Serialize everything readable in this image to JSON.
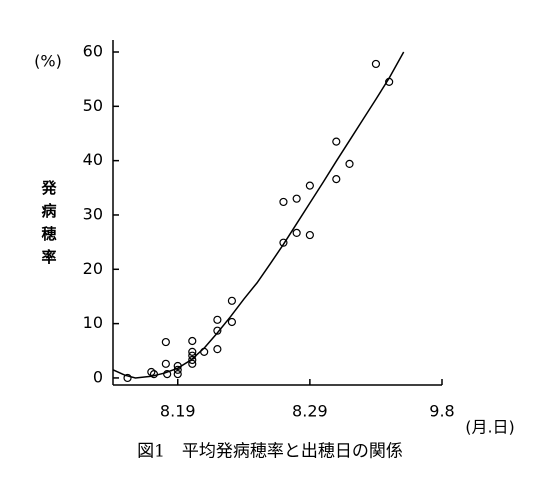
{
  "chart_data": {
    "type": "scatter",
    "y_unit": "(%)",
    "y_label": "発病穂率",
    "x_unit": "(月.日)",
    "caption": "図1　平均発病穂率と出穂日の関係",
    "xlim": [
      14.1,
      39
    ],
    "ylim": [
      -1.3,
      60
    ],
    "xticks": [
      {
        "value": 19,
        "label": "8.19"
      },
      {
        "value": 29,
        "label": "8.29"
      },
      {
        "value": 39,
        "label": "9.8"
      }
    ],
    "yticks": [
      0,
      10,
      20,
      30,
      40,
      50,
      60
    ],
    "series": [
      {
        "marker": "circle",
        "color": "#000000",
        "x": [
          15.2,
          17.0,
          17.2,
          18.1,
          18.1,
          18.2,
          19,
          19,
          19,
          20.1,
          20.1,
          20.1,
          20.1,
          20.1,
          21.0,
          22.0,
          22.0,
          22.0,
          23.1,
          23.1,
          27.0,
          27.0,
          28.0,
          28.0,
          29.0,
          29.0,
          31.0,
          31.0,
          32.0,
          34.0,
          35.0
        ],
        "values": [
          0,
          1.1,
          0.7,
          6.6,
          2.6,
          0.7,
          2.2,
          1.5,
          0.7,
          6.8,
          4.8,
          4.1,
          3.3,
          2.6,
          4.8,
          10.7,
          8.7,
          5.3,
          14.2,
          10.3,
          32.4,
          24.9,
          33.0,
          26.7,
          35.4,
          26.3,
          43.5,
          36.6,
          39.4,
          57.8,
          54.5
        ]
      },
      {
        "marker": "line",
        "color": "#000000",
        "x": [
          14.1,
          15,
          15.8,
          17,
          18,
          19,
          20,
          21,
          22,
          23,
          24,
          25,
          26,
          27,
          28,
          29,
          30,
          31,
          32,
          33,
          34,
          35,
          36.1
        ],
        "values": [
          1.5,
          0.5,
          0,
          0.3,
          0.9,
          1.8,
          3.3,
          5.5,
          8.3,
          11.3,
          14.5,
          17.5,
          21,
          24.6,
          28.4,
          32.2,
          36,
          39.9,
          43.7,
          47.5,
          51.3,
          55.2,
          60
        ]
      }
    ]
  }
}
